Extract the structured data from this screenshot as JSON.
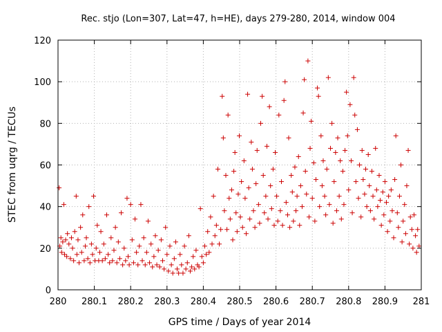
{
  "chart_data": {
    "type": "scatter",
    "title": "Rec. stjo (Lon=307, Lat=47, h=HE), days 279-280, 2014, window 004",
    "xlabel": "GPS time / Days of year 2014",
    "ylabel": "STEC from uqrg / TECUs",
    "xlim": [
      280,
      281
    ],
    "ylim": [
      0,
      120
    ],
    "xticks": [
      "280",
      "280.1",
      "280.2",
      "280.3",
      "280.4",
      "280.5",
      "280.6",
      "280.7",
      "280.8",
      "280.9",
      "281"
    ],
    "yticks": [
      "0",
      "20",
      "40",
      "60",
      "80",
      "100",
      "120"
    ],
    "grid": true,
    "marker": "+",
    "color": "#cc0000",
    "series": [
      {
        "points": [
          [
            280.003,
            49
          ],
          [
            280.005,
            21
          ],
          [
            280.008,
            25
          ],
          [
            280.01,
            18
          ],
          [
            280.013,
            23
          ],
          [
            280.016,
            41
          ],
          [
            280.018,
            17
          ],
          [
            280.021,
            24
          ],
          [
            280.024,
            16
          ],
          [
            280.026,
            27
          ],
          [
            280.03,
            22
          ],
          [
            280.034,
            15
          ],
          [
            280.037,
            25
          ],
          [
            280.04,
            20
          ],
          [
            280.043,
            14
          ],
          [
            280.046,
            28
          ],
          [
            280.05,
            45
          ],
          [
            280.052,
            17
          ],
          [
            280.055,
            24
          ],
          [
            280.058,
            13
          ],
          [
            280.062,
            30
          ],
          [
            280.065,
            18
          ],
          [
            280.068,
            36
          ],
          [
            280.072,
            14
          ],
          [
            280.075,
            21
          ],
          [
            280.078,
            25
          ],
          [
            280.082,
            15
          ],
          [
            280.085,
            40
          ],
          [
            280.088,
            13
          ],
          [
            280.092,
            22
          ],
          [
            280.095,
            17
          ],
          [
            280.098,
            45
          ],
          [
            280.102,
            14
          ],
          [
            280.105,
            20
          ],
          [
            280.108,
            31
          ],
          [
            280.112,
            14
          ],
          [
            280.115,
            18
          ],
          [
            280.118,
            28
          ],
          [
            280.122,
            14
          ],
          [
            280.126,
            22
          ],
          [
            280.13,
            15
          ],
          [
            280.134,
            36
          ],
          [
            280.138,
            17
          ],
          [
            280.142,
            13
          ],
          [
            280.146,
            25
          ],
          [
            280.15,
            14
          ],
          [
            280.154,
            19
          ],
          [
            280.158,
            30
          ],
          [
            280.162,
            13
          ],
          [
            280.166,
            23
          ],
          [
            280.17,
            15
          ],
          [
            280.174,
            37
          ],
          [
            280.178,
            12
          ],
          [
            280.182,
            20
          ],
          [
            280.186,
            14
          ],
          [
            280.19,
            44
          ],
          [
            280.193,
            16
          ],
          [
            280.196,
            12
          ],
          [
            280.2,
            41
          ],
          [
            280.204,
            24
          ],
          [
            280.208,
            13
          ],
          [
            280.212,
            34
          ],
          [
            280.216,
            18
          ],
          [
            280.22,
            12
          ],
          [
            280.224,
            21
          ],
          [
            280.228,
            41
          ],
          [
            280.232,
            14
          ],
          [
            280.236,
            25
          ],
          [
            280.24,
            12
          ],
          [
            280.244,
            18
          ],
          [
            280.248,
            33
          ],
          [
            280.252,
            13
          ],
          [
            280.256,
            22
          ],
          [
            280.26,
            11
          ],
          [
            280.264,
            16
          ],
          [
            280.268,
            26
          ],
          [
            280.272,
            12
          ],
          [
            280.276,
            19
          ],
          [
            280.28,
            11
          ],
          [
            280.284,
            24
          ],
          [
            280.288,
            14
          ],
          [
            280.292,
            10
          ],
          [
            280.296,
            30
          ],
          [
            280.3,
            17
          ],
          [
            280.304,
            9
          ],
          [
            280.308,
            21
          ],
          [
            280.312,
            12
          ],
          [
            280.316,
            8
          ],
          [
            280.32,
            15
          ],
          [
            280.324,
            23
          ],
          [
            280.328,
            10
          ],
          [
            280.332,
            8
          ],
          [
            280.336,
            17
          ],
          [
            280.34,
            12
          ],
          [
            280.344,
            8
          ],
          [
            280.348,
            21
          ],
          [
            280.352,
            10
          ],
          [
            280.356,
            13
          ],
          [
            280.36,
            26
          ],
          [
            280.364,
            9
          ],
          [
            280.368,
            11
          ],
          [
            280.372,
            16
          ],
          [
            280.376,
            10
          ],
          [
            280.38,
            19
          ],
          [
            280.384,
            12
          ],
          [
            280.388,
            11
          ],
          [
            280.392,
            39
          ],
          [
            280.396,
            16
          ],
          [
            280.4,
            13
          ],
          [
            280.404,
            21
          ],
          [
            280.408,
            17
          ],
          [
            280.412,
            28
          ],
          [
            280.416,
            18
          ],
          [
            280.42,
            35
          ],
          [
            280.424,
            22
          ],
          [
            280.428,
            45
          ],
          [
            280.432,
            26
          ],
          [
            280.436,
            31
          ],
          [
            280.44,
            58
          ],
          [
            280.444,
            22
          ],
          [
            280.448,
            29
          ],
          [
            280.452,
            93
          ],
          [
            280.455,
            73
          ],
          [
            280.458,
            38
          ],
          [
            280.462,
            55
          ],
          [
            280.465,
            29
          ],
          [
            280.468,
            84
          ],
          [
            280.471,
            44
          ],
          [
            280.474,
            34
          ],
          [
            280.478,
            48
          ],
          [
            280.481,
            24
          ],
          [
            280.484,
            57
          ],
          [
            280.487,
            66
          ],
          [
            280.49,
            37
          ],
          [
            280.493,
            28
          ],
          [
            280.496,
            46
          ],
          [
            280.499,
            74
          ],
          [
            280.502,
            35
          ],
          [
            280.505,
            52
          ],
          [
            280.508,
            30
          ],
          [
            280.512,
            62
          ],
          [
            280.515,
            44
          ],
          [
            280.518,
            27
          ],
          [
            280.522,
            94
          ],
          [
            280.525,
            49
          ],
          [
            280.528,
            34
          ],
          [
            280.532,
            71
          ],
          [
            280.535,
            58
          ],
          [
            280.538,
            38
          ],
          [
            280.542,
            30
          ],
          [
            280.545,
            51
          ],
          [
            280.548,
            67
          ],
          [
            280.552,
            41
          ],
          [
            280.555,
            32
          ],
          [
            280.558,
            80
          ],
          [
            280.562,
            93
          ],
          [
            280.565,
            55
          ],
          [
            280.568,
            37
          ],
          [
            280.572,
            45
          ],
          [
            280.575,
            69
          ],
          [
            280.578,
            34
          ],
          [
            280.582,
            88
          ],
          [
            280.585,
            50
          ],
          [
            280.588,
            39
          ],
          [
            280.592,
            58
          ],
          [
            280.595,
            31
          ],
          [
            280.598,
            66
          ],
          [
            280.602,
            45
          ],
          [
            280.605,
            33
          ],
          [
            280.608,
            84
          ],
          [
            280.612,
            38
          ],
          [
            280.615,
            52
          ],
          [
            280.618,
            31
          ],
          [
            280.622,
            91
          ],
          [
            280.625,
            100
          ],
          [
            280.628,
            42
          ],
          [
            280.632,
            36
          ],
          [
            280.635,
            73
          ],
          [
            280.638,
            30
          ],
          [
            280.642,
            55
          ],
          [
            280.645,
            47
          ],
          [
            280.648,
            33
          ],
          [
            280.652,
            59
          ],
          [
            280.655,
            38
          ],
          [
            280.658,
            45
          ],
          [
            280.662,
            64
          ],
          [
            280.665,
            31
          ],
          [
            280.668,
            50
          ],
          [
            280.672,
            40
          ],
          [
            280.675,
            85
          ],
          [
            280.678,
            101
          ],
          [
            280.681,
            57
          ],
          [
            280.684,
            46
          ],
          [
            280.688,
            110
          ],
          [
            280.691,
            35
          ],
          [
            280.694,
            68
          ],
          [
            280.697,
            81
          ],
          [
            280.7,
            44
          ],
          [
            280.704,
            61
          ],
          [
            280.707,
            33
          ],
          [
            280.71,
            53
          ],
          [
            280.714,
            97
          ],
          [
            280.717,
            93
          ],
          [
            280.72,
            40
          ],
          [
            280.724,
            74
          ],
          [
            280.727,
            50
          ],
          [
            280.73,
            62
          ],
          [
            280.734,
            45
          ],
          [
            280.737,
            36
          ],
          [
            280.74,
            58
          ],
          [
            280.744,
            102
          ],
          [
            280.747,
            41
          ],
          [
            280.75,
            68
          ],
          [
            280.754,
            80
          ],
          [
            280.757,
            32
          ],
          [
            280.76,
            52
          ],
          [
            280.764,
            66
          ],
          [
            280.767,
            38
          ],
          [
            280.77,
            73
          ],
          [
            280.774,
            45
          ],
          [
            280.777,
            62
          ],
          [
            280.78,
            34
          ],
          [
            280.784,
            57
          ],
          [
            280.787,
            41
          ],
          [
            280.79,
            67
          ],
          [
            280.794,
            95
          ],
          [
            280.797,
            74
          ],
          [
            280.8,
            48
          ],
          [
            280.804,
            89
          ],
          [
            280.807,
            62
          ],
          [
            280.81,
            37
          ],
          [
            280.814,
            102
          ],
          [
            280.817,
            84
          ],
          [
            280.82,
            52
          ],
          [
            280.824,
            77
          ],
          [
            280.827,
            44
          ],
          [
            280.83,
            60
          ],
          [
            280.834,
            35
          ],
          [
            280.837,
            67
          ],
          [
            280.84,
            53
          ],
          [
            280.844,
            46
          ],
          [
            280.847,
            58
          ],
          [
            280.85,
            40
          ],
          [
            280.854,
            65
          ],
          [
            280.857,
            50
          ],
          [
            280.86,
            38
          ],
          [
            280.864,
            57
          ],
          [
            280.867,
            45
          ],
          [
            280.87,
            34
          ],
          [
            280.874,
            68
          ],
          [
            280.877,
            48
          ],
          [
            280.88,
            40
          ],
          [
            280.884,
            55
          ],
          [
            280.887,
            43
          ],
          [
            280.89,
            31
          ],
          [
            280.894,
            47
          ],
          [
            280.897,
            36
          ],
          [
            280.9,
            52
          ],
          [
            280.904,
            42
          ],
          [
            280.907,
            28
          ],
          [
            280.91,
            45
          ],
          [
            280.914,
            33
          ],
          [
            280.917,
            48
          ],
          [
            280.92,
            38
          ],
          [
            280.924,
            25
          ],
          [
            280.927,
            53
          ],
          [
            280.93,
            74
          ],
          [
            280.934,
            37
          ],
          [
            280.937,
            30
          ],
          [
            280.94,
            45
          ],
          [
            280.944,
            60
          ],
          [
            280.947,
            23
          ],
          [
            280.95,
            33
          ],
          [
            280.954,
            41
          ],
          [
            280.957,
            27
          ],
          [
            280.96,
            50
          ],
          [
            280.964,
            67
          ],
          [
            280.967,
            22
          ],
          [
            280.97,
            35
          ],
          [
            280.974,
            29
          ],
          [
            280.977,
            20
          ],
          [
            280.98,
            36
          ],
          [
            280.984,
            26
          ],
          [
            280.987,
            18
          ],
          [
            280.99,
            29
          ],
          [
            280.994,
            21
          ]
        ]
      }
    ]
  }
}
